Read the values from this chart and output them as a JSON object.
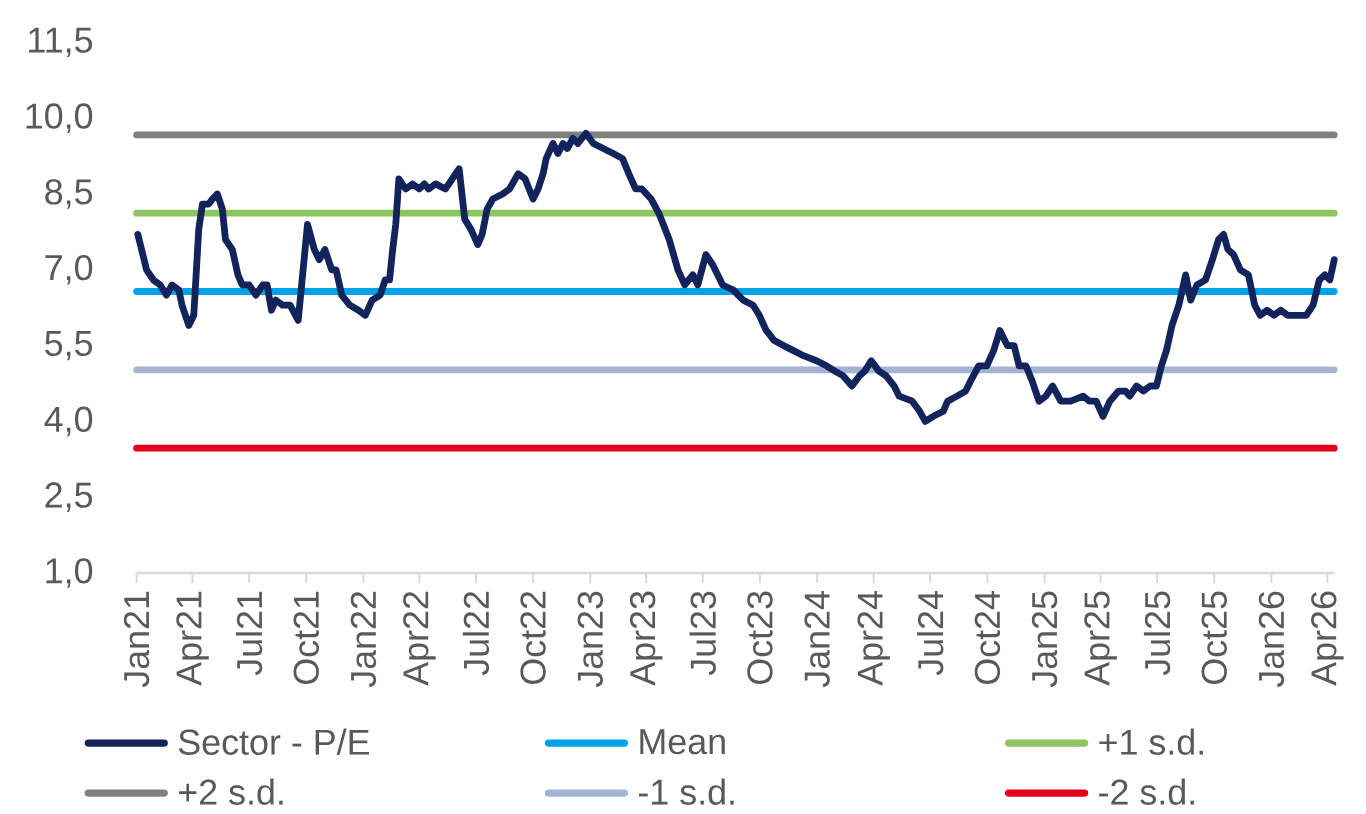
{
  "chart_data": {
    "type": "line",
    "xlim": [
      "2021-01-01",
      "2026-04-12"
    ],
    "ylim": [
      1,
      11.5
    ],
    "yticks": [
      {
        "value": 1,
        "label": "1,0"
      },
      {
        "value": 2.5,
        "label": "2,5"
      },
      {
        "value": 4,
        "label": "4,0"
      },
      {
        "value": 5.5,
        "label": "5,5"
      },
      {
        "value": 7,
        "label": "7,0"
      },
      {
        "value": 8.5,
        "label": "8,5"
      },
      {
        "value": 10,
        "label": "10,0"
      },
      {
        "value": 11.5,
        "label": "11,5"
      }
    ],
    "xticks": [
      {
        "value": "2021-01",
        "label": "Jan21"
      },
      {
        "value": "2021-04",
        "label": "Apr21"
      },
      {
        "value": "2021-07",
        "label": "Jul21"
      },
      {
        "value": "2021-10",
        "label": "Oct21"
      },
      {
        "value": "2022-01",
        "label": "Jan22"
      },
      {
        "value": "2022-04",
        "label": "Apr22"
      },
      {
        "value": "2022-07",
        "label": "Jul22"
      },
      {
        "value": "2022-10",
        "label": "Oct22"
      },
      {
        "value": "2023-01",
        "label": "Jan23"
      },
      {
        "value": "2023-04",
        "label": "Apr23"
      },
      {
        "value": "2023-07",
        "label": "Jul23"
      },
      {
        "value": "2023-10",
        "label": "Oct23"
      },
      {
        "value": "2024-01",
        "label": "Jan24"
      },
      {
        "value": "2024-04",
        "label": "Apr24"
      },
      {
        "value": "2024-07",
        "label": "Jul24"
      },
      {
        "value": "2024-10",
        "label": "Oct24"
      },
      {
        "value": "2025-01",
        "label": "Jan25"
      },
      {
        "value": "2025-04",
        "label": "Apr25"
      },
      {
        "value": "2025-07",
        "label": "Jul25"
      },
      {
        "value": "2025-10",
        "label": "Oct25"
      },
      {
        "value": "2026-01",
        "label": "Jan26"
      },
      {
        "value": "2026-04",
        "label": "Apr26"
      }
    ],
    "legend": "bottom",
    "series": [
      {
        "name": "Sector - P/E",
        "color": "#13235b",
        "x": [
          "2021-01-03",
          "2021-01-17",
          "2021-01-28",
          "2021-02-08",
          "2021-02-18",
          "2021-02-27",
          "2021-03-10",
          "2021-03-15",
          "2021-03-26",
          "2021-04-03",
          "2021-04-11",
          "2021-04-17",
          "2021-04-27",
          "2021-05-03",
          "2021-05-11",
          "2021-05-19",
          "2021-05-24",
          "2021-06-04",
          "2021-06-13",
          "2021-06-20",
          "2021-07-01",
          "2021-07-12",
          "2021-07-23",
          "2021-07-30",
          "2021-08-06",
          "2021-08-13",
          "2021-08-24",
          "2021-09-05",
          "2021-09-18",
          "2021-10-03",
          "2021-10-14",
          "2021-10-22",
          "2021-10-31",
          "2021-11-11",
          "2021-11-18",
          "2021-11-27",
          "2021-12-10",
          "2021-12-24",
          "2022-01-04",
          "2022-01-15",
          "2022-01-28",
          "2022-02-05",
          "2022-02-12",
          "2022-02-17",
          "2022-02-22",
          "2022-02-27",
          "2022-03-10",
          "2022-03-21",
          "2022-04-01",
          "2022-04-09",
          "2022-04-16",
          "2022-04-27",
          "2022-05-13",
          "2022-05-24",
          "2022-06-04",
          "2022-06-13",
          "2022-06-23",
          "2022-07-04",
          "2022-07-11",
          "2022-07-19",
          "2022-07-28",
          "2022-08-13",
          "2022-08-24",
          "2022-09-07",
          "2022-09-18",
          "2022-10-01",
          "2022-10-09",
          "2022-10-17",
          "2022-10-22",
          "2022-11-02",
          "2022-11-10",
          "2022-11-18",
          "2022-11-25",
          "2022-12-04",
          "2022-12-12",
          "2022-12-25",
          "2023-01-06",
          "2023-01-22",
          "2023-02-07",
          "2023-02-22",
          "2023-03-04",
          "2023-03-15",
          "2023-03-25",
          "2023-04-09",
          "2023-04-22",
          "2023-05-08",
          "2023-05-22",
          "2023-06-02",
          "2023-06-15",
          "2023-06-23",
          "2023-07-06",
          "2023-07-17",
          "2023-08-02",
          "2023-08-19",
          "2023-09-04",
          "2023-09-20",
          "2023-09-30",
          "2023-10-11",
          "2023-10-24",
          "2023-11-08",
          "2023-11-24",
          "2023-12-10",
          "2023-12-31",
          "2024-01-16",
          "2024-01-29",
          "2024-02-12",
          "2024-02-26",
          "2024-03-09",
          "2024-03-18",
          "2024-03-28",
          "2024-04-09",
          "2024-04-21",
          "2024-05-04",
          "2024-05-12",
          "2024-06-02",
          "2024-06-14",
          "2024-06-23",
          "2024-07-06",
          "2024-07-22",
          "2024-07-29",
          "2024-08-13",
          "2024-08-27",
          "2024-09-04",
          "2024-09-17",
          "2024-09-30",
          "2024-10-11",
          "2024-10-21",
          "2024-11-02",
          "2024-11-13",
          "2024-11-21",
          "2024-12-02",
          "2024-12-12",
          "2024-12-23",
          "2025-01-03",
          "2025-01-14",
          "2025-01-27",
          "2025-02-12",
          "2025-03-04",
          "2025-03-14",
          "2025-03-25",
          "2025-04-05",
          "2025-04-16",
          "2025-04-30",
          "2025-05-11",
          "2025-05-18",
          "2025-05-29",
          "2025-06-09",
          "2025-06-20",
          "2025-06-30",
          "2025-07-08",
          "2025-07-16",
          "2025-07-25",
          "2025-08-05",
          "2025-08-16",
          "2025-08-24",
          "2025-09-03",
          "2025-09-17",
          "2025-09-28",
          "2025-10-08",
          "2025-10-16",
          "2025-10-23",
          "2025-11-01",
          "2025-11-12",
          "2025-11-25",
          "2025-12-05",
          "2025-12-14",
          "2025-12-25",
          "2026-01-05",
          "2026-01-16",
          "2026-01-27",
          "2026-02-12",
          "2026-02-26",
          "2026-03-09",
          "2026-03-19",
          "2026-03-28",
          "2026-04-05",
          "2026-04-12"
        ],
        "values": [
          7.7,
          7.0,
          6.8,
          6.7,
          6.5,
          6.7,
          6.6,
          6.3,
          5.9,
          6.1,
          7.8,
          8.3,
          8.3,
          8.4,
          8.5,
          8.2,
          7.6,
          7.4,
          6.9,
          6.7,
          6.7,
          6.5,
          6.7,
          6.7,
          6.2,
          6.4,
          6.3,
          6.3,
          6.0,
          7.9,
          7.4,
          7.2,
          7.4,
          7.0,
          7.0,
          6.5,
          6.3,
          6.2,
          6.1,
          6.4,
          6.5,
          6.8,
          6.8,
          7.4,
          7.9,
          8.8,
          8.6,
          8.7,
          8.6,
          8.7,
          8.6,
          8.7,
          8.6,
          8.8,
          9.0,
          8.0,
          7.8,
          7.5,
          7.7,
          8.2,
          8.4,
          8.5,
          8.6,
          8.9,
          8.8,
          8.4,
          8.6,
          8.9,
          9.2,
          9.5,
          9.3,
          9.5,
          9.4,
          9.6,
          9.5,
          9.7,
          9.5,
          9.4,
          9.3,
          9.2,
          8.9,
          8.6,
          8.6,
          8.4,
          8.1,
          7.6,
          7.0,
          6.7,
          6.9,
          6.7,
          7.3,
          7.1,
          6.7,
          6.6,
          6.4,
          6.3,
          6.1,
          5.8,
          5.6,
          5.5,
          5.4,
          5.3,
          5.2,
          5.1,
          5.0,
          4.9,
          4.7,
          4.9,
          5.0,
          5.2,
          5.0,
          4.9,
          4.7,
          4.5,
          4.4,
          4.2,
          4.0,
          4.1,
          4.2,
          4.4,
          4.5,
          4.6,
          4.8,
          5.1,
          5.1,
          5.4,
          5.8,
          5.5,
          5.5,
          5.1,
          5.1,
          4.8,
          4.4,
          4.5,
          4.7,
          4.4,
          4.4,
          4.5,
          4.4,
          4.4,
          4.1,
          4.4,
          4.6,
          4.6,
          4.5,
          4.7,
          4.6,
          4.7,
          4.7,
          5.1,
          5.4,
          5.9,
          6.3,
          6.9,
          6.4,
          6.7,
          6.8,
          7.2,
          7.6,
          7.7,
          7.4,
          7.3,
          7.0,
          6.9,
          6.3,
          6.1,
          6.2,
          6.1,
          6.2,
          6.1,
          6.1,
          6.1,
          6.3,
          6.8,
          6.9,
          6.8,
          7.2
        ]
      },
      {
        "name": "Mean",
        "color": "#00a3e8",
        "x": [
          "2021-01-01",
          "2026-04-12"
        ],
        "values": [
          6.57,
          6.57
        ]
      },
      {
        "name": "+1 s.d.",
        "color": "#8dc65e",
        "x": [
          "2021-01-01",
          "2026-04-12"
        ],
        "values": [
          8.12,
          8.12
        ]
      },
      {
        "name": "+2 s.d.",
        "color": "#808080",
        "x": [
          "2021-01-01",
          "2026-04-12"
        ],
        "values": [
          9.67,
          9.67
        ]
      },
      {
        "name": "-1 s.d.",
        "color": "#a3b5d3",
        "x": [
          "2021-01-01",
          "2026-04-12"
        ],
        "values": [
          5.02,
          5.02
        ]
      },
      {
        "name": "-2 s.d.",
        "color": "#e2001a",
        "x": [
          "2021-01-01",
          "2026-04-12"
        ],
        "values": [
          3.47,
          3.47
        ]
      }
    ]
  }
}
